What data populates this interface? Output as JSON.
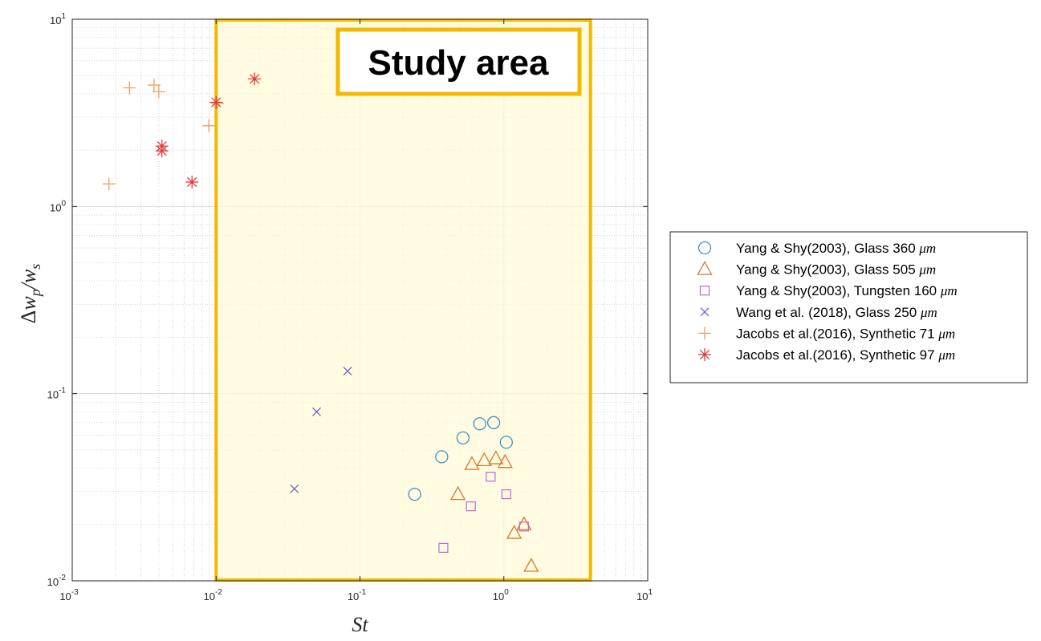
{
  "chart_data": {
    "type": "scatter",
    "x_scale": "log",
    "y_scale": "log",
    "xlim": [
      0.001,
      10
    ],
    "ylim": [
      0.01,
      10
    ],
    "grid": true,
    "minor_grid": true,
    "legend_position": "right",
    "xlabel": "St",
    "ylabel_parts": {
      "delta": "Δ",
      "w1": "w",
      "sub1": "p",
      "slash": "/",
      "w2": "w",
      "sub2": "s"
    },
    "x_ticks": [
      {
        "value": 0.001,
        "base": "10",
        "exp": "-3"
      },
      {
        "value": 0.01,
        "base": "10",
        "exp": "-2"
      },
      {
        "value": 0.1,
        "base": "10",
        "exp": "-1"
      },
      {
        "value": 1,
        "base": "10",
        "exp": "0"
      },
      {
        "value": 10,
        "base": "10",
        "exp": "1"
      }
    ],
    "y_ticks": [
      {
        "value": 0.01,
        "base": "10",
        "exp": "-2"
      },
      {
        "value": 0.1,
        "base": "10",
        "exp": "-1"
      },
      {
        "value": 1,
        "base": "10",
        "exp": "0"
      },
      {
        "value": 10,
        "base": "10",
        "exp": "1"
      }
    ],
    "study_area": {
      "label": "Study area",
      "x_range": [
        0.01,
        4
      ],
      "fill_color": "#fffbd6",
      "border_color": "#f5b800"
    },
    "series": [
      {
        "name": "Yang & Shy(2003), Glass 360 μm",
        "marker": "circle",
        "color": "#3b93c9",
        "points": [
          {
            "x": 0.24,
            "y": 0.029
          },
          {
            "x": 0.37,
            "y": 0.046
          },
          {
            "x": 0.52,
            "y": 0.058
          },
          {
            "x": 0.68,
            "y": 0.069
          },
          {
            "x": 0.85,
            "y": 0.07
          },
          {
            "x": 1.04,
            "y": 0.055
          }
        ]
      },
      {
        "name": "Yang & Shy(2003), Glass 505 μm",
        "marker": "triangle",
        "color": "#d9782d",
        "points": [
          {
            "x": 0.48,
            "y": 0.029
          },
          {
            "x": 0.6,
            "y": 0.042
          },
          {
            "x": 0.73,
            "y": 0.044
          },
          {
            "x": 0.88,
            "y": 0.045
          },
          {
            "x": 1.02,
            "y": 0.043
          },
          {
            "x": 1.18,
            "y": 0.018
          },
          {
            "x": 1.38,
            "y": 0.02
          },
          {
            "x": 1.55,
            "y": 0.012
          }
        ]
      },
      {
        "name": "Yang & Shy(2003), Tungsten 160 μm",
        "marker": "square",
        "color": "#c165d6",
        "points": [
          {
            "x": 0.38,
            "y": 0.015
          },
          {
            "x": 0.59,
            "y": 0.025
          },
          {
            "x": 0.81,
            "y": 0.036
          },
          {
            "x": 1.04,
            "y": 0.029
          },
          {
            "x": 1.38,
            "y": 0.0195
          }
        ]
      },
      {
        "name": "Wang et al. (2018), Glass 250 μm",
        "marker": "x",
        "color": "#6a5acd",
        "points": [
          {
            "x": 0.035,
            "y": 0.031
          },
          {
            "x": 0.05,
            "y": 0.08
          },
          {
            "x": 0.082,
            "y": 0.132
          }
        ]
      },
      {
        "name": "Jacobs et al.(2016), Synthetic 71 μm",
        "marker": "plus",
        "color": "#f0a060",
        "points": [
          {
            "x": 0.0018,
            "y": 1.32
          },
          {
            "x": 0.0025,
            "y": 4.3
          },
          {
            "x": 0.0037,
            "y": 4.45
          },
          {
            "x": 0.004,
            "y": 4.1
          },
          {
            "x": 0.0089,
            "y": 2.7
          },
          {
            "x": 0.0102,
            "y": 3.55
          }
        ]
      },
      {
        "name": "Jacobs et al.(2016), Synthetic 97 μm",
        "marker": "asterisk",
        "color": "#e03c3c",
        "points": [
          {
            "x": 0.0042,
            "y": 2.1
          },
          {
            "x": 0.0042,
            "y": 1.98
          },
          {
            "x": 0.0068,
            "y": 1.35
          },
          {
            "x": 0.01,
            "y": 3.6
          },
          {
            "x": 0.0185,
            "y": 4.8
          }
        ]
      }
    ],
    "legend": [
      {
        "prefix": "Yang & Shy(2003), Glass 360 ",
        "unit": "μm"
      },
      {
        "prefix": "Yang & Shy(2003), Glass 505 ",
        "unit": "μm"
      },
      {
        "prefix": "Yang & Shy(2003), Tungsten 160 ",
        "unit": "μm"
      },
      {
        "prefix": "Wang et al. (2018), Glass 250 ",
        "unit": "μm"
      },
      {
        "prefix": "Jacobs et al.(2016), Synthetic 71 ",
        "unit": "μm"
      },
      {
        "prefix": "Jacobs et al.(2016), Synthetic 97 ",
        "unit": "μm"
      }
    ]
  }
}
